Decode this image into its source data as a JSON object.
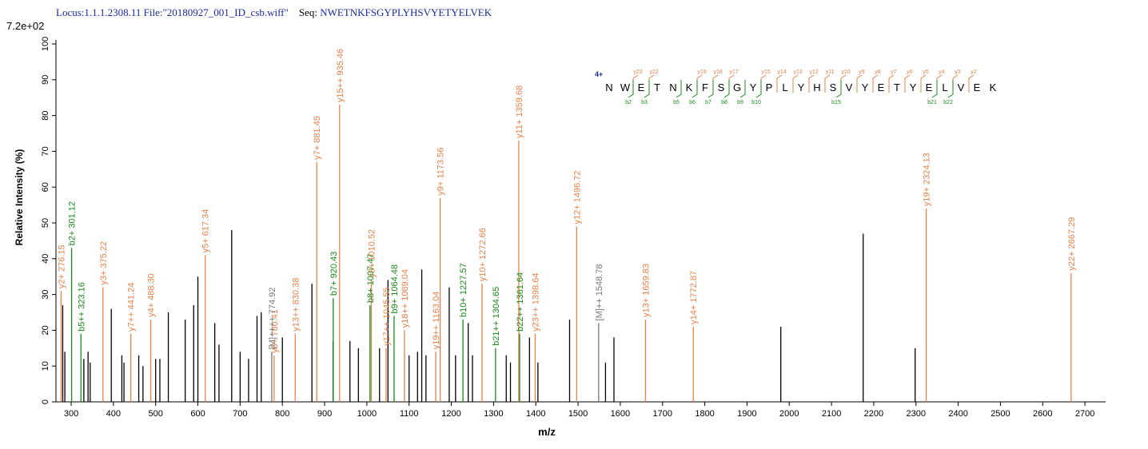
{
  "chart_data": {
    "type": "spectrum",
    "header": {
      "locus": "Locus:1.1.1.2308.11 File:\"20180927_001_ID_csb.wiff\"",
      "seq_label": "Seq:",
      "sequence": "NWETNKFSGYPLYHSVYETYELVEK"
    },
    "scale_label": "7.2e+02",
    "ylabel": "Relative   Intensity (%)",
    "xlabel": "m/z",
    "xlim": [
      264,
      2749
    ],
    "ylim": [
      0,
      100
    ],
    "xticks": [
      300,
      400,
      500,
      600,
      700,
      800,
      900,
      1000,
      1100,
      1200,
      1300,
      1400,
      1500,
      1600,
      1700,
      1800,
      1900,
      2000,
      2100,
      2200,
      2300,
      2400,
      2500,
      2600,
      2700
    ],
    "yticks": [
      0,
      10,
      20,
      30,
      40,
      50,
      60,
      70,
      80,
      90,
      100
    ],
    "series": [
      {
        "color": "#000000",
        "x": [
          280,
          285,
          330,
          340,
          345,
          395,
          420,
          425,
          460,
          470,
          500,
          510,
          530,
          570,
          590,
          600,
          640,
          650,
          680,
          700,
          720,
          740,
          750,
          800,
          870,
          920,
          960,
          980,
          1030,
          1050,
          1100,
          1120,
          1130,
          1140,
          1195,
          1210,
          1240,
          1250,
          1330,
          1340,
          1385,
          1405,
          1480,
          1565,
          1585,
          1980,
          2175,
          2298
        ],
        "values": [
          27,
          14,
          12,
          14,
          11,
          26,
          13,
          11,
          13,
          10,
          12,
          12,
          25,
          23,
          27,
          35,
          22,
          16,
          48,
          14,
          12,
          24,
          25,
          18,
          33,
          17,
          17,
          15,
          15,
          34,
          13,
          14,
          37,
          13,
          32,
          13,
          22,
          13,
          13,
          11,
          18,
          11,
          23,
          11,
          18,
          21,
          47,
          15
        ]
      },
      {
        "color": "#e8824a",
        "x": [
          276.15,
          375.22,
          441.24,
          488.3,
          617.34,
          780.41,
          830.38,
          881.45,
          935.46,
          1010.52,
          1045.55,
          1089.04,
          1163.04,
          1173.56,
          1272.66,
          1359.68,
          1398.64,
          1496.72,
          1659.83,
          1772.87,
          2324.13,
          2667.29
        ],
        "values": [
          31,
          32,
          19,
          23,
          41,
          13,
          19,
          67,
          83,
          34,
          15,
          20,
          14,
          57,
          33,
          73,
          19,
          49,
          23,
          21,
          54,
          36
        ],
        "labels": [
          "y2+ 276.15",
          "y3+ 375.22",
          "y7++ 441.24",
          "y4+ 488.30",
          "y5+ 617.34",
          "y6+ 780.41",
          "y13++ 830.38",
          "y7+ 881.45",
          "y15++ 935.46",
          "y8+ 1010.52",
          "y17++ 1045.55",
          "y18++ 1089.04",
          "y19++ 1163.04",
          "y9+ 1173.56",
          "y10+ 1272.66",
          "y11+ 1359.68",
          "y23++ 1398.64",
          "y12+ 1496.72",
          "y13+ 1659.83",
          "y14+ 1772.87",
          "y19+ 2324.13",
          "y22+ 2667.29"
        ]
      },
      {
        "color": "#1a8a1a",
        "x": [
          301.12,
          323.16,
          920.43,
          1007.47,
          1064.48,
          1227.57,
          1304.65,
          1361.64
        ],
        "values": [
          43,
          19,
          29,
          27,
          24,
          23,
          15,
          19
        ],
        "labels": [
          "b2+ 301.12",
          "b5++ 323.16",
          "b7+ 920.43",
          "b8+ 1007.47",
          "b9+ 1064.48",
          "b10+ 1227.57",
          "b21++ 1304.65",
          "b22++ 1361.64"
        ]
      },
      {
        "color": "#777777",
        "x": [
          774.92,
          1548.78
        ],
        "values": [
          14,
          22
        ],
        "labels": [
          "[M]++++ 774.92",
          "[M]++ 1548.78"
        ]
      }
    ],
    "fragment_map": {
      "charge": "4+",
      "residues": [
        "N",
        "W",
        "E",
        "T",
        "N",
        "K",
        "F",
        "S",
        "G",
        "Y",
        "P",
        "L",
        "Y",
        "H",
        "S",
        "V",
        "Y",
        "E",
        "T",
        "Y",
        "E",
        "L",
        "V",
        "E",
        "K"
      ],
      "y_ions": [
        null,
        "y23",
        "y22",
        null,
        null,
        "y19",
        "y18",
        "y17",
        null,
        "y15",
        "y14",
        "y13",
        "y12",
        "y11",
        "y10",
        "y9",
        "y8",
        "y7",
        "y6",
        "y5",
        "y4",
        "y3",
        "y2",
        null
      ],
      "b_ions": [
        null,
        "b2",
        "b3",
        null,
        "b5",
        "b6",
        "b7",
        "b8",
        "b9",
        "b10",
        null,
        null,
        null,
        null,
        "b15",
        null,
        null,
        null,
        null,
        null,
        "b21",
        "b22",
        null,
        null
      ]
    }
  }
}
